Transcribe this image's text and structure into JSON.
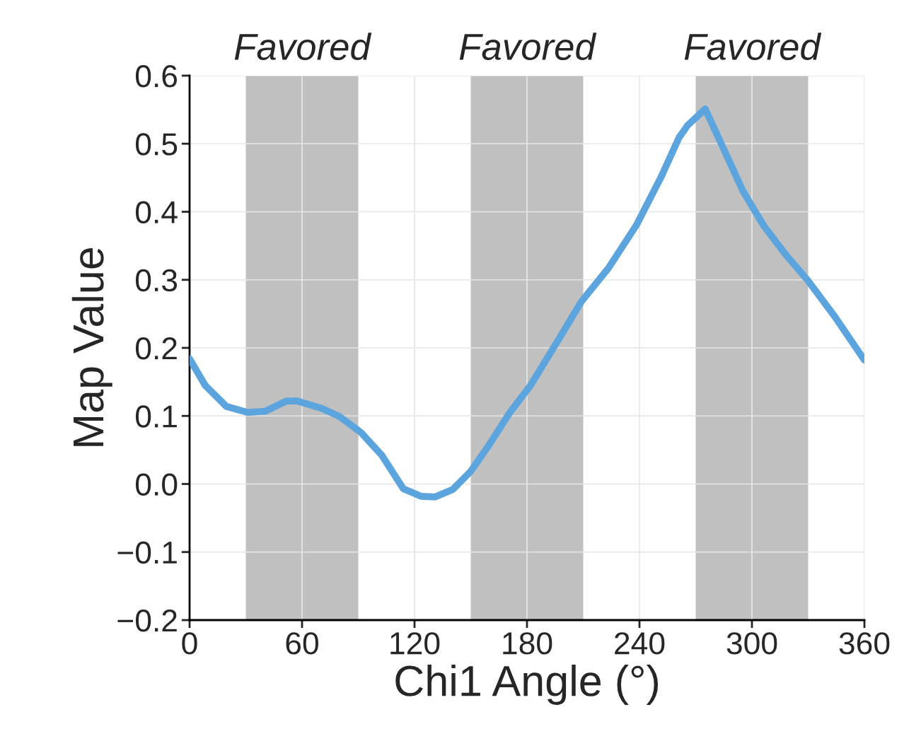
{
  "chart_data": {
    "type": "line",
    "xlabel": "Chi1 Angle (°)",
    "ylabel": "Map Value",
    "x": [
      0,
      8.3,
      19.6,
      31,
      40.4,
      51.7,
      57.4,
      70.6,
      80,
      91.3,
      102.6,
      114,
      123.4,
      131,
      140.4,
      149.8,
      159.2,
      170.6,
      181.9,
      197,
      209,
      223.4,
      238.5,
      251.7,
      261.1,
      265.7,
      275.1,
      283.8,
      295.1,
      306.4,
      317.7,
      329.8,
      344.2,
      360
    ],
    "series": [
      {
        "color": "#5ca4dd",
        "values": [
          0.184,
          0.145,
          0.114,
          0.105,
          0.107,
          0.122,
          0.122,
          0.111,
          0.099,
          0.076,
          0.042,
          -0.007,
          -0.018,
          -0.019,
          -0.008,
          0.018,
          0.055,
          0.104,
          0.145,
          0.213,
          0.268,
          0.317,
          0.381,
          0.452,
          0.509,
          0.527,
          0.551,
          0.499,
          0.431,
          0.379,
          0.338,
          0.299,
          0.246,
          0.182
        ]
      }
    ],
    "xlim": [
      0,
      360
    ],
    "xticks": [
      0,
      60,
      120,
      180,
      240,
      300,
      360
    ],
    "ylim": [
      -0.2,
      0.6
    ],
    "yticks": [
      {
        "value": -0.2,
        "label": "−0.2"
      },
      {
        "value": -0.1,
        "label": "−0.1"
      },
      {
        "value": 0,
        "label": "0.0"
      },
      {
        "value": 0.1,
        "label": "0.1"
      },
      {
        "value": 0.2,
        "label": "0.2"
      },
      {
        "value": 0.3,
        "label": "0.3"
      },
      {
        "value": 0.4,
        "label": "0.4"
      },
      {
        "value": 0.5,
        "label": "0.5"
      },
      {
        "value": 0.6,
        "label": "0.6"
      }
    ],
    "bands": [
      {
        "axis": "x",
        "from": 30,
        "to": 90,
        "label": "Favored",
        "color": "#c0c0c0"
      },
      {
        "axis": "x",
        "from": 150,
        "to": 210,
        "label": "Favored",
        "color": "#c0c0c0"
      },
      {
        "axis": "x",
        "from": 270,
        "to": 330,
        "label": "Favored",
        "color": "#c0c0c0"
      }
    ],
    "grid": true,
    "marker": "none",
    "line_style": "solid",
    "legend": false
  }
}
